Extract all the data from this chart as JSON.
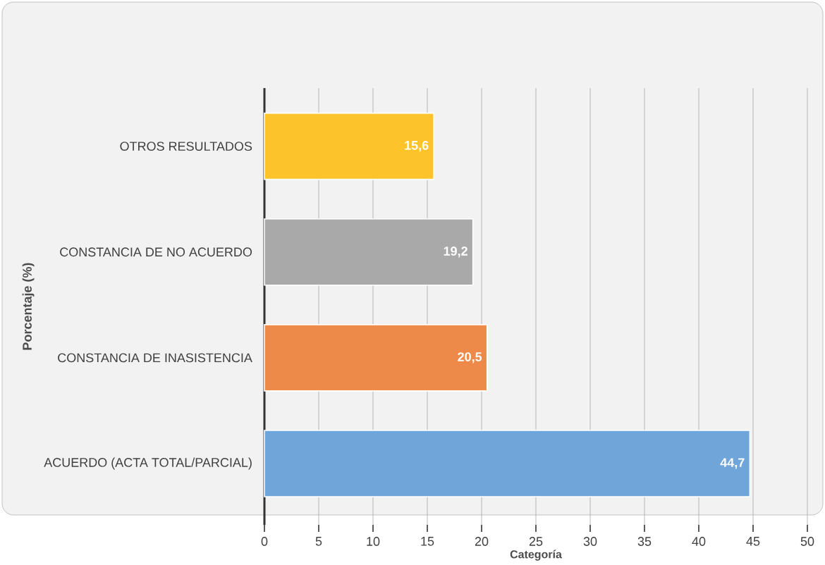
{
  "chart_data": {
    "type": "bar",
    "orientation": "horizontal",
    "xlabel": "Categoría",
    "ylabel": "Porcentaje (%)",
    "categories": [
      "OTROS RESULTADOS",
      "CONSTANCIA DE NO ACUERDO",
      "CONSTANCIA DE INASISTENCIA",
      "ACUERDO (ACTA TOTAL/PARCIAL)"
    ],
    "values": [
      15.6,
      19.2,
      20.5,
      44.7
    ],
    "colors": [
      "#fcc42a",
      "#a9a9a9",
      "#ed8a4a",
      "#6fa5d8"
    ],
    "value_labels": [
      "15,6",
      "19,2",
      "20,5",
      "44,7"
    ],
    "xlim": [
      0,
      50
    ],
    "xticks": [
      0,
      5,
      10,
      15,
      20,
      25,
      30,
      35,
      40,
      45,
      50
    ],
    "grid": "x"
  }
}
